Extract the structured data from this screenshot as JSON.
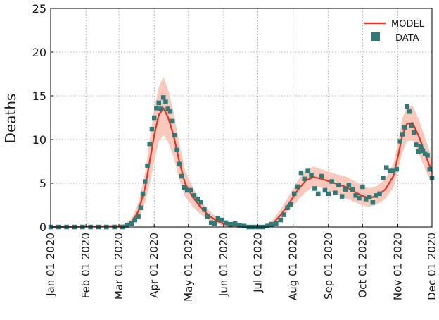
{
  "chart_data": {
    "type": "line",
    "title": "",
    "xlabel": "",
    "ylabel": "Deaths",
    "x_type": "date",
    "xlim": [
      "2020-01-01",
      "2020-12-01"
    ],
    "ylim": [
      0,
      25
    ],
    "y_ticks": [
      0,
      5,
      10,
      15,
      20,
      25
    ],
    "x_ticks": [
      {
        "date": "2020-01-01",
        "label": "Jan 01 2020"
      },
      {
        "date": "2020-02-01",
        "label": "Feb 01 2020"
      },
      {
        "date": "2020-03-01",
        "label": "Mar 01 2020"
      },
      {
        "date": "2020-04-01",
        "label": "Apr 01 2020"
      },
      {
        "date": "2020-05-01",
        "label": "May 01 2020"
      },
      {
        "date": "2020-06-01",
        "label": "Jun 01 2020"
      },
      {
        "date": "2020-07-01",
        "label": "Jul 01 2020"
      },
      {
        "date": "2020-08-01",
        "label": "Aug 01 2020"
      },
      {
        "date": "2020-09-01",
        "label": "Sep 01 2020"
      },
      {
        "date": "2020-10-01",
        "label": "Oct 01 2020"
      },
      {
        "date": "2020-11-01",
        "label": "Nov 01 2020"
      },
      {
        "date": "2020-12-01",
        "label": "Dec 01 2020"
      }
    ],
    "grid": true,
    "legend_position": "top-right",
    "colors": {
      "model": "#e8301c",
      "band": "#f7c0b0",
      "data": "#2e7a78"
    },
    "series": [
      {
        "name": "MODEL",
        "kind": "line",
        "x": [
          "2020-01-01",
          "2020-03-05",
          "2020-03-12",
          "2020-03-18",
          "2020-03-24",
          "2020-03-28",
          "2020-04-01",
          "2020-04-05",
          "2020-04-09",
          "2020-04-13",
          "2020-04-18",
          "2020-04-23",
          "2020-04-28",
          "2020-05-05",
          "2020-05-12",
          "2020-05-19",
          "2020-05-26",
          "2020-06-02",
          "2020-06-09",
          "2020-06-16",
          "2020-06-23",
          "2020-07-01",
          "2020-07-08",
          "2020-07-15",
          "2020-07-22",
          "2020-07-29",
          "2020-08-05",
          "2020-08-12",
          "2020-08-19",
          "2020-08-26",
          "2020-09-02",
          "2020-09-09",
          "2020-09-16",
          "2020-09-23",
          "2020-09-30",
          "2020-10-07",
          "2020-10-14",
          "2020-10-21",
          "2020-10-28",
          "2020-11-01",
          "2020-11-05",
          "2020-11-09",
          "2020-11-14",
          "2020-11-20",
          "2020-11-26",
          "2020-12-01"
        ],
        "y": [
          0,
          0.1,
          0.5,
          1.8,
          4.5,
          7.5,
          10.5,
          12.8,
          13.6,
          12.6,
          10.5,
          7.5,
          5,
          3.4,
          2.2,
          1.3,
          0.7,
          0.3,
          0.2,
          0.1,
          0,
          0,
          0.1,
          0.5,
          1.5,
          2.8,
          4.2,
          5.3,
          5.7,
          5.5,
          5.2,
          4.9,
          4.6,
          4.1,
          3.6,
          3.3,
          3.6,
          4.3,
          5.8,
          8,
          10.5,
          11.8,
          11.9,
          10.2,
          8,
          6.3
        ]
      },
      {
        "name": "DATA",
        "kind": "scatter",
        "x": [
          "2020-01-01",
          "2020-01-08",
          "2020-01-15",
          "2020-01-22",
          "2020-01-29",
          "2020-02-05",
          "2020-02-12",
          "2020-02-19",
          "2020-02-26",
          "2020-03-04",
          "2020-03-08",
          "2020-03-12",
          "2020-03-15",
          "2020-03-18",
          "2020-03-20",
          "2020-03-22",
          "2020-03-24",
          "2020-03-26",
          "2020-03-28",
          "2020-03-30",
          "2020-04-01",
          "2020-04-03",
          "2020-04-05",
          "2020-04-07",
          "2020-04-09",
          "2020-04-11",
          "2020-04-13",
          "2020-04-15",
          "2020-04-17",
          "2020-04-19",
          "2020-04-21",
          "2020-04-23",
          "2020-04-25",
          "2020-04-27",
          "2020-04-30",
          "2020-05-03",
          "2020-05-06",
          "2020-05-09",
          "2020-05-12",
          "2020-05-15",
          "2020-05-18",
          "2020-05-21",
          "2020-05-24",
          "2020-05-27",
          "2020-05-30",
          "2020-06-03",
          "2020-06-07",
          "2020-06-11",
          "2020-06-15",
          "2020-06-19",
          "2020-06-23",
          "2020-06-27",
          "2020-07-01",
          "2020-07-05",
          "2020-07-09",
          "2020-07-13",
          "2020-07-17",
          "2020-07-21",
          "2020-07-24",
          "2020-07-27",
          "2020-07-30",
          "2020-08-02",
          "2020-08-05",
          "2020-08-08",
          "2020-08-11",
          "2020-08-14",
          "2020-08-17",
          "2020-08-20",
          "2020-08-23",
          "2020-08-26",
          "2020-08-29",
          "2020-09-01",
          "2020-09-04",
          "2020-09-07",
          "2020-09-10",
          "2020-09-13",
          "2020-09-16",
          "2020-09-19",
          "2020-09-22",
          "2020-09-25",
          "2020-09-28",
          "2020-10-01",
          "2020-10-04",
          "2020-10-07",
          "2020-10-10",
          "2020-10-13",
          "2020-10-16",
          "2020-10-19",
          "2020-10-22",
          "2020-10-25",
          "2020-10-28",
          "2020-10-31",
          "2020-11-03",
          "2020-11-05",
          "2020-11-07",
          "2020-11-09",
          "2020-11-11",
          "2020-11-13",
          "2020-11-15",
          "2020-11-17",
          "2020-11-19",
          "2020-11-21",
          "2020-11-23",
          "2020-11-25",
          "2020-11-27",
          "2020-11-29",
          "2020-12-01"
        ],
        "y": [
          0,
          0,
          0,
          0,
          0,
          0,
          0,
          0,
          0,
          0,
          0.2,
          0.4,
          0.8,
          1.2,
          2.2,
          3.8,
          5.2,
          7,
          9.5,
          11.2,
          12.5,
          13.6,
          14.2,
          13.5,
          14.8,
          14.3,
          13.5,
          13.2,
          12.1,
          10.5,
          8.8,
          7.2,
          5.8,
          4.5,
          4.2,
          4.2,
          3.6,
          3.2,
          2.8,
          2,
          1.2,
          0.5,
          0.4,
          1,
          0.8,
          0.5,
          0.3,
          0.4,
          0.2,
          0.1,
          0,
          0,
          0,
          0,
          0.1,
          0.3,
          0.4,
          0.8,
          1.4,
          2.2,
          2.6,
          3.8,
          4.6,
          6.2,
          5.5,
          6.4,
          5.9,
          4.4,
          3.8,
          5.8,
          4.2,
          3.8,
          5.2,
          3.9,
          4.8,
          3.5,
          4.3,
          4.8,
          4.3,
          3.6,
          3.3,
          4.6,
          3.2,
          3.4,
          2.8,
          3.6,
          3.8,
          5.6,
          6.8,
          6.4,
          6.4,
          6.6,
          9.8,
          10.6,
          11.4,
          13.8,
          13.2,
          11.6,
          10.8,
          9.4,
          8.6,
          9.2,
          8.7,
          8.4,
          8.2,
          6.6,
          5.6
        ]
      }
    ],
    "uncertainty_band": {
      "x": [
        "2020-01-01",
        "2020-03-05",
        "2020-03-12",
        "2020-03-18",
        "2020-03-24",
        "2020-03-28",
        "2020-04-01",
        "2020-04-05",
        "2020-04-09",
        "2020-04-13",
        "2020-04-18",
        "2020-04-23",
        "2020-04-28",
        "2020-05-05",
        "2020-05-12",
        "2020-05-19",
        "2020-05-26",
        "2020-06-02",
        "2020-06-09",
        "2020-06-16",
        "2020-06-23",
        "2020-07-01",
        "2020-07-08",
        "2020-07-15",
        "2020-07-22",
        "2020-07-29",
        "2020-08-05",
        "2020-08-12",
        "2020-08-19",
        "2020-08-26",
        "2020-09-02",
        "2020-09-09",
        "2020-09-16",
        "2020-09-23",
        "2020-09-30",
        "2020-10-07",
        "2020-10-14",
        "2020-10-21",
        "2020-10-28",
        "2020-11-01",
        "2020-11-05",
        "2020-11-09",
        "2020-11-14",
        "2020-11-20",
        "2020-11-26",
        "2020-12-01"
      ],
      "lower": [
        0,
        0,
        0.2,
        1,
        2.8,
        5,
        7.5,
        9.8,
        10.5,
        9.8,
        8,
        5.5,
        3.5,
        2.3,
        1.4,
        0.8,
        0.4,
        0.1,
        0,
        0,
        0,
        0,
        0,
        0.2,
        0.9,
        2,
        3,
        4,
        4.6,
        4.5,
        4.1,
        3.7,
        3.3,
        2.9,
        2.5,
        2.3,
        2.6,
        3.2,
        4.5,
        6.5,
        8.5,
        9.8,
        9.9,
        8.2,
        6.3,
        4.8
      ],
      "upper": [
        0,
        0.3,
        0.9,
        2.7,
        6.2,
        10,
        13.5,
        16,
        17.2,
        15.8,
        13.2,
        9.6,
        6.5,
        4.5,
        3,
        1.9,
        1.1,
        0.6,
        0.4,
        0.2,
        0.1,
        0.1,
        0.3,
        0.9,
        2.2,
        3.7,
        5.3,
        6.5,
        6.9,
        6.6,
        6.3,
        6,
        5.8,
        5.3,
        4.8,
        4.4,
        4.7,
        5.5,
        7.2,
        9.6,
        12.4,
        13.8,
        13.9,
        12.1,
        9.8,
        7.9
      ]
    }
  }
}
